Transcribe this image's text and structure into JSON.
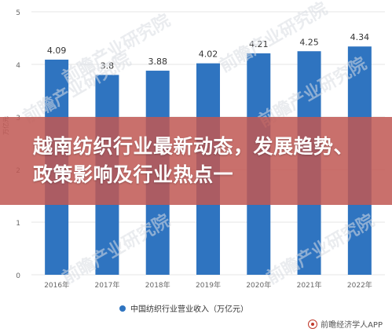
{
  "watermarks": [
    "前瞻产业研究院",
    "前瞻产业研究院",
    "前瞻产业研究院",
    "前瞻产业研究院",
    "前瞻产业研究院",
    "前瞻产业研究院"
  ],
  "overlay": {
    "title": "越南纺织行业最新动态，发展趋势、政策影响及行业热点一"
  },
  "source_text": "前瞻经济学人APP",
  "colors": {
    "bar": "#2f74c0",
    "grid": "#e6e6e6",
    "axis_text": "#666666",
    "overlay": "#c05854"
  },
  "chart_data": {
    "type": "bar",
    "categories": [
      "2016年",
      "2017年",
      "2018年",
      "2019年",
      "2020年",
      "2021年",
      "2022年"
    ],
    "series": [
      {
        "name": "中国纺织行业营业收入（万亿元）",
        "values": [
          4.09,
          3.8,
          3.88,
          4.02,
          4.21,
          4.25,
          4.34
        ]
      }
    ],
    "data_labels": [
      "4.09",
      "3.8",
      "3.88",
      "4.02",
      "4.21",
      "4.25",
      "4.34"
    ],
    "y_ticks": [
      0,
      1,
      2,
      3,
      4,
      5
    ],
    "ylim": [
      0,
      5
    ],
    "ylabel": "万亿元",
    "grid": true,
    "legend": "bottom-center"
  }
}
